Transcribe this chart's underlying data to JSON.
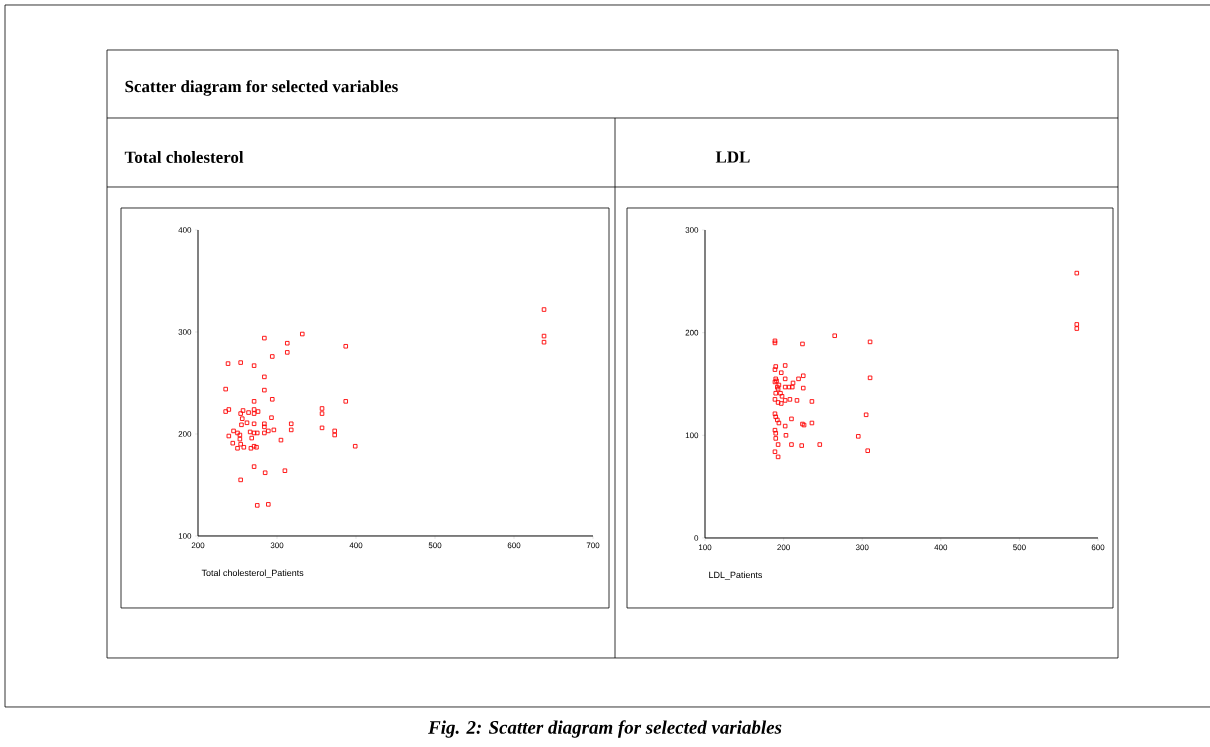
{
  "chart_data": [
    {
      "type": "scatter",
      "title": "Total cholesterol",
      "xlabel": "Total cholesterol_Patients",
      "annotations": [
        "Scatter diagram for selected variables",
        "Fig. 2: Scatter diagram for selected variables"
      ],
      "color": "#ff0000",
      "marker": "square",
      "xlim": [
        200,
        700
      ],
      "ylim": [
        100,
        400
      ],
      "xticks": [
        200,
        300,
        400,
        500,
        600,
        700
      ],
      "yticks": [
        100,
        200,
        300,
        400
      ],
      "x": [
        284,
        332,
        313,
        313,
        387,
        294,
        238,
        254,
        271,
        284,
        235,
        284,
        294,
        271,
        387,
        235,
        239,
        357,
        357,
        254,
        257,
        264,
        271,
        271,
        276,
        293,
        256,
        255,
        262,
        271,
        284,
        284,
        318,
        318,
        357,
        373,
        373,
        245,
        239,
        250,
        253,
        266,
        271,
        275,
        284,
        289,
        296,
        253,
        244,
        250,
        258,
        268,
        271,
        274,
        267,
        254,
        305,
        399,
        271,
        285,
        310,
        254,
        275,
        289,
        638,
        638,
        638
      ],
      "values": [
        294,
        298,
        289,
        280,
        286,
        276,
        269,
        270,
        267,
        256,
        244,
        243,
        234,
        232,
        232,
        222,
        224,
        225,
        220,
        220,
        223,
        221,
        224,
        220,
        222,
        216,
        215,
        209,
        211,
        210,
        210,
        207,
        210,
        204,
        206,
        203,
        199,
        203,
        198,
        201,
        199,
        202,
        201,
        201,
        201,
        203,
        204,
        195,
        191,
        186,
        187,
        196,
        188,
        187,
        186,
        190,
        194,
        188,
        168,
        162,
        164,
        155,
        130,
        131,
        322,
        296,
        290
      ]
    },
    {
      "type": "scatter",
      "title": "LDL",
      "xlabel": "LDL_Patients",
      "color": "#ff0000",
      "marker": "square",
      "xlim": [
        100,
        600
      ],
      "ylim": [
        0,
        300
      ],
      "xticks": [
        100,
        200,
        300,
        400,
        500,
        600
      ],
      "yticks": [
        0,
        100,
        200,
        300
      ],
      "x": [
        573,
        573,
        573,
        310,
        310,
        305,
        295,
        307,
        265,
        189,
        189,
        224,
        202,
        190,
        189,
        197,
        225,
        219,
        202,
        190,
        189,
        191,
        194,
        212,
        207,
        211,
        202,
        225,
        192,
        193,
        190,
        196,
        198,
        189,
        202,
        208,
        217,
        236,
        193,
        197,
        189,
        190,
        192,
        194,
        210,
        202,
        224,
        226,
        236,
        189,
        190,
        203,
        190,
        193,
        210,
        223,
        246,
        189,
        193
      ],
      "values": [
        258,
        208,
        204,
        191,
        156,
        120,
        99,
        85,
        197,
        190,
        192,
        189,
        168,
        167,
        164,
        161,
        158,
        155,
        155,
        155,
        152,
        153,
        149,
        151,
        147,
        147,
        147,
        146,
        147,
        145,
        141,
        141,
        138,
        135,
        134,
        135,
        134,
        133,
        132,
        131,
        121,
        118,
        115,
        112,
        116,
        109,
        111,
        110,
        112,
        105,
        102,
        100,
        97,
        91,
        91,
        90,
        91,
        84,
        79
      ]
    }
  ]
}
